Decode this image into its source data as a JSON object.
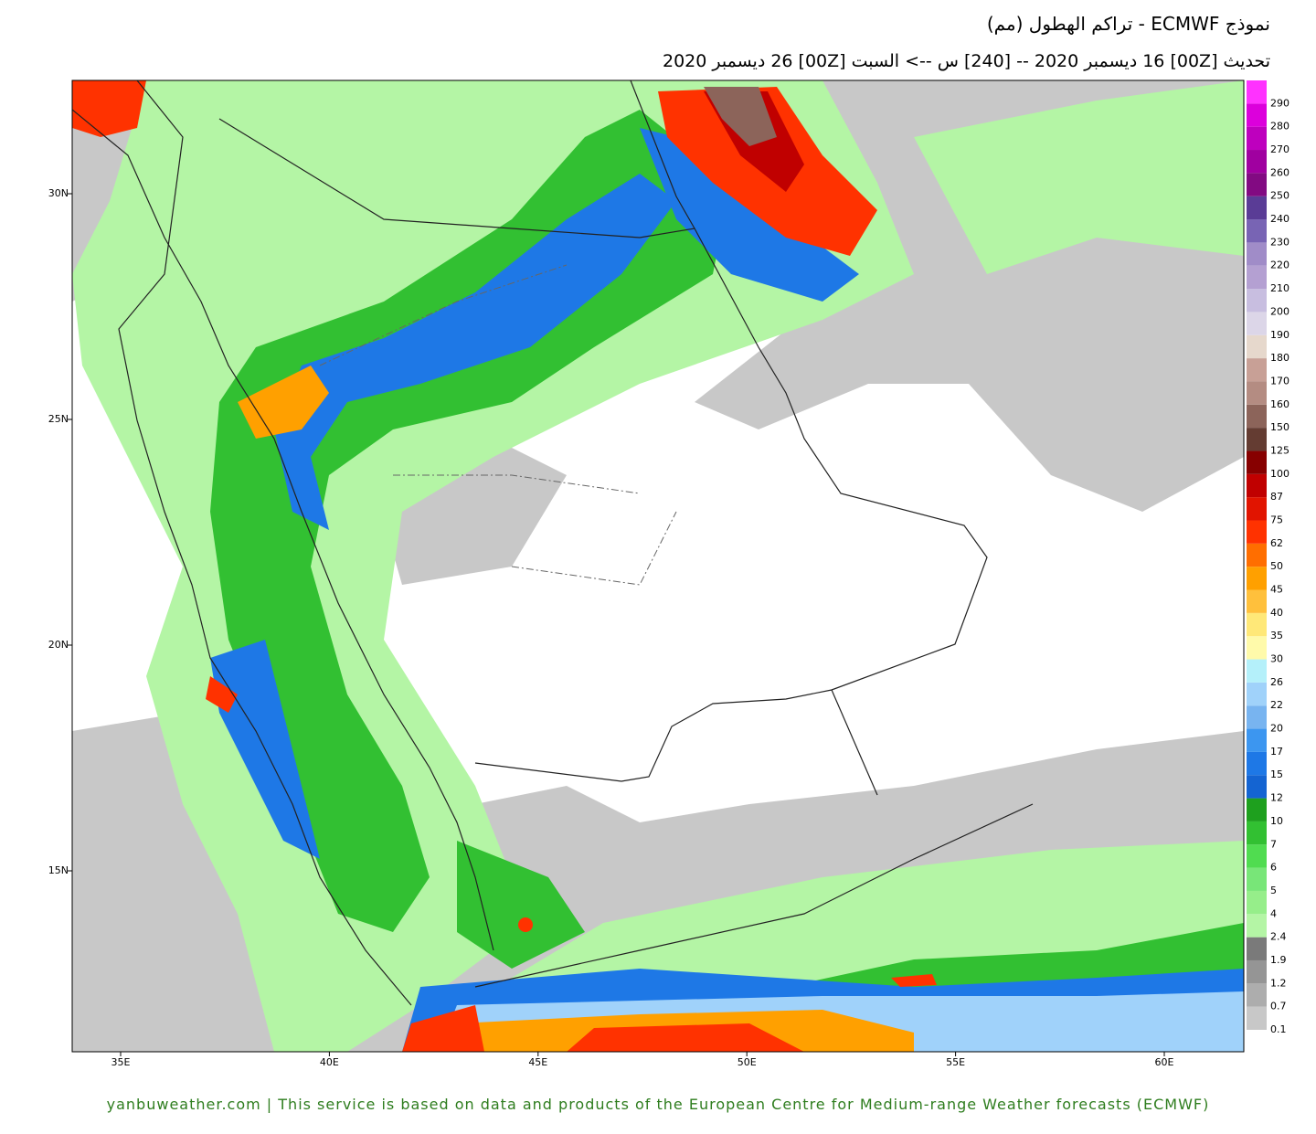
{
  "header": {
    "title": "نموذج ECMWF - تراكم الهطول (مم)",
    "subtitle": "تحديث [00Z] 16 ديسمبر 2020 -- [240] س --> السبت [00Z] 26 ديسمبر 2020"
  },
  "map": {
    "lat_labels": [
      "30N",
      "25N",
      "20N",
      "15N"
    ],
    "lon_labels": [
      "35E",
      "40E",
      "45E",
      "50E",
      "55E",
      "60E"
    ]
  },
  "legend": {
    "levels": [
      0.1,
      0.7,
      1.2,
      1.9,
      2.4,
      4,
      5,
      6,
      7,
      10,
      12,
      15,
      17,
      20,
      22,
      26,
      30,
      35,
      40,
      45,
      50,
      62,
      75,
      87,
      100,
      125,
      150,
      160,
      170,
      180,
      190,
      200,
      210,
      220,
      230,
      240,
      250,
      260,
      270,
      280,
      290
    ],
    "colors": [
      "#c8c8c8",
      "#adadad",
      "#959595",
      "#7a7a7a",
      "#b4f5a5",
      "#96ee8a",
      "#78e678",
      "#50dc50",
      "#32c032",
      "#1ea01e",
      "#1464d2",
      "#1e78e6",
      "#3c96f0",
      "#78b4f0",
      "#a0d2fa",
      "#b4f0fa",
      "#fffaaa",
      "#ffe878",
      "#ffc03c",
      "#ffa000",
      "#ff6e00",
      "#ff3200",
      "#e11400",
      "#c00000",
      "#870000",
      "#643c32",
      "#8c645a",
      "#b48c82",
      "#c8a096",
      "#e6d8cc",
      "#dcd6e8",
      "#c8bee0",
      "#b4a0d2",
      "#a08cc8",
      "#7864b4",
      "#5a3c96",
      "#820a82",
      "#a000a0",
      "#be00be",
      "#dc00dc",
      "#ff32ff"
    ]
  },
  "footer": "yanbuweather.com | This service is based on data and products of the European Centre for Medium-range Weather forecasts (ECMWF)"
}
